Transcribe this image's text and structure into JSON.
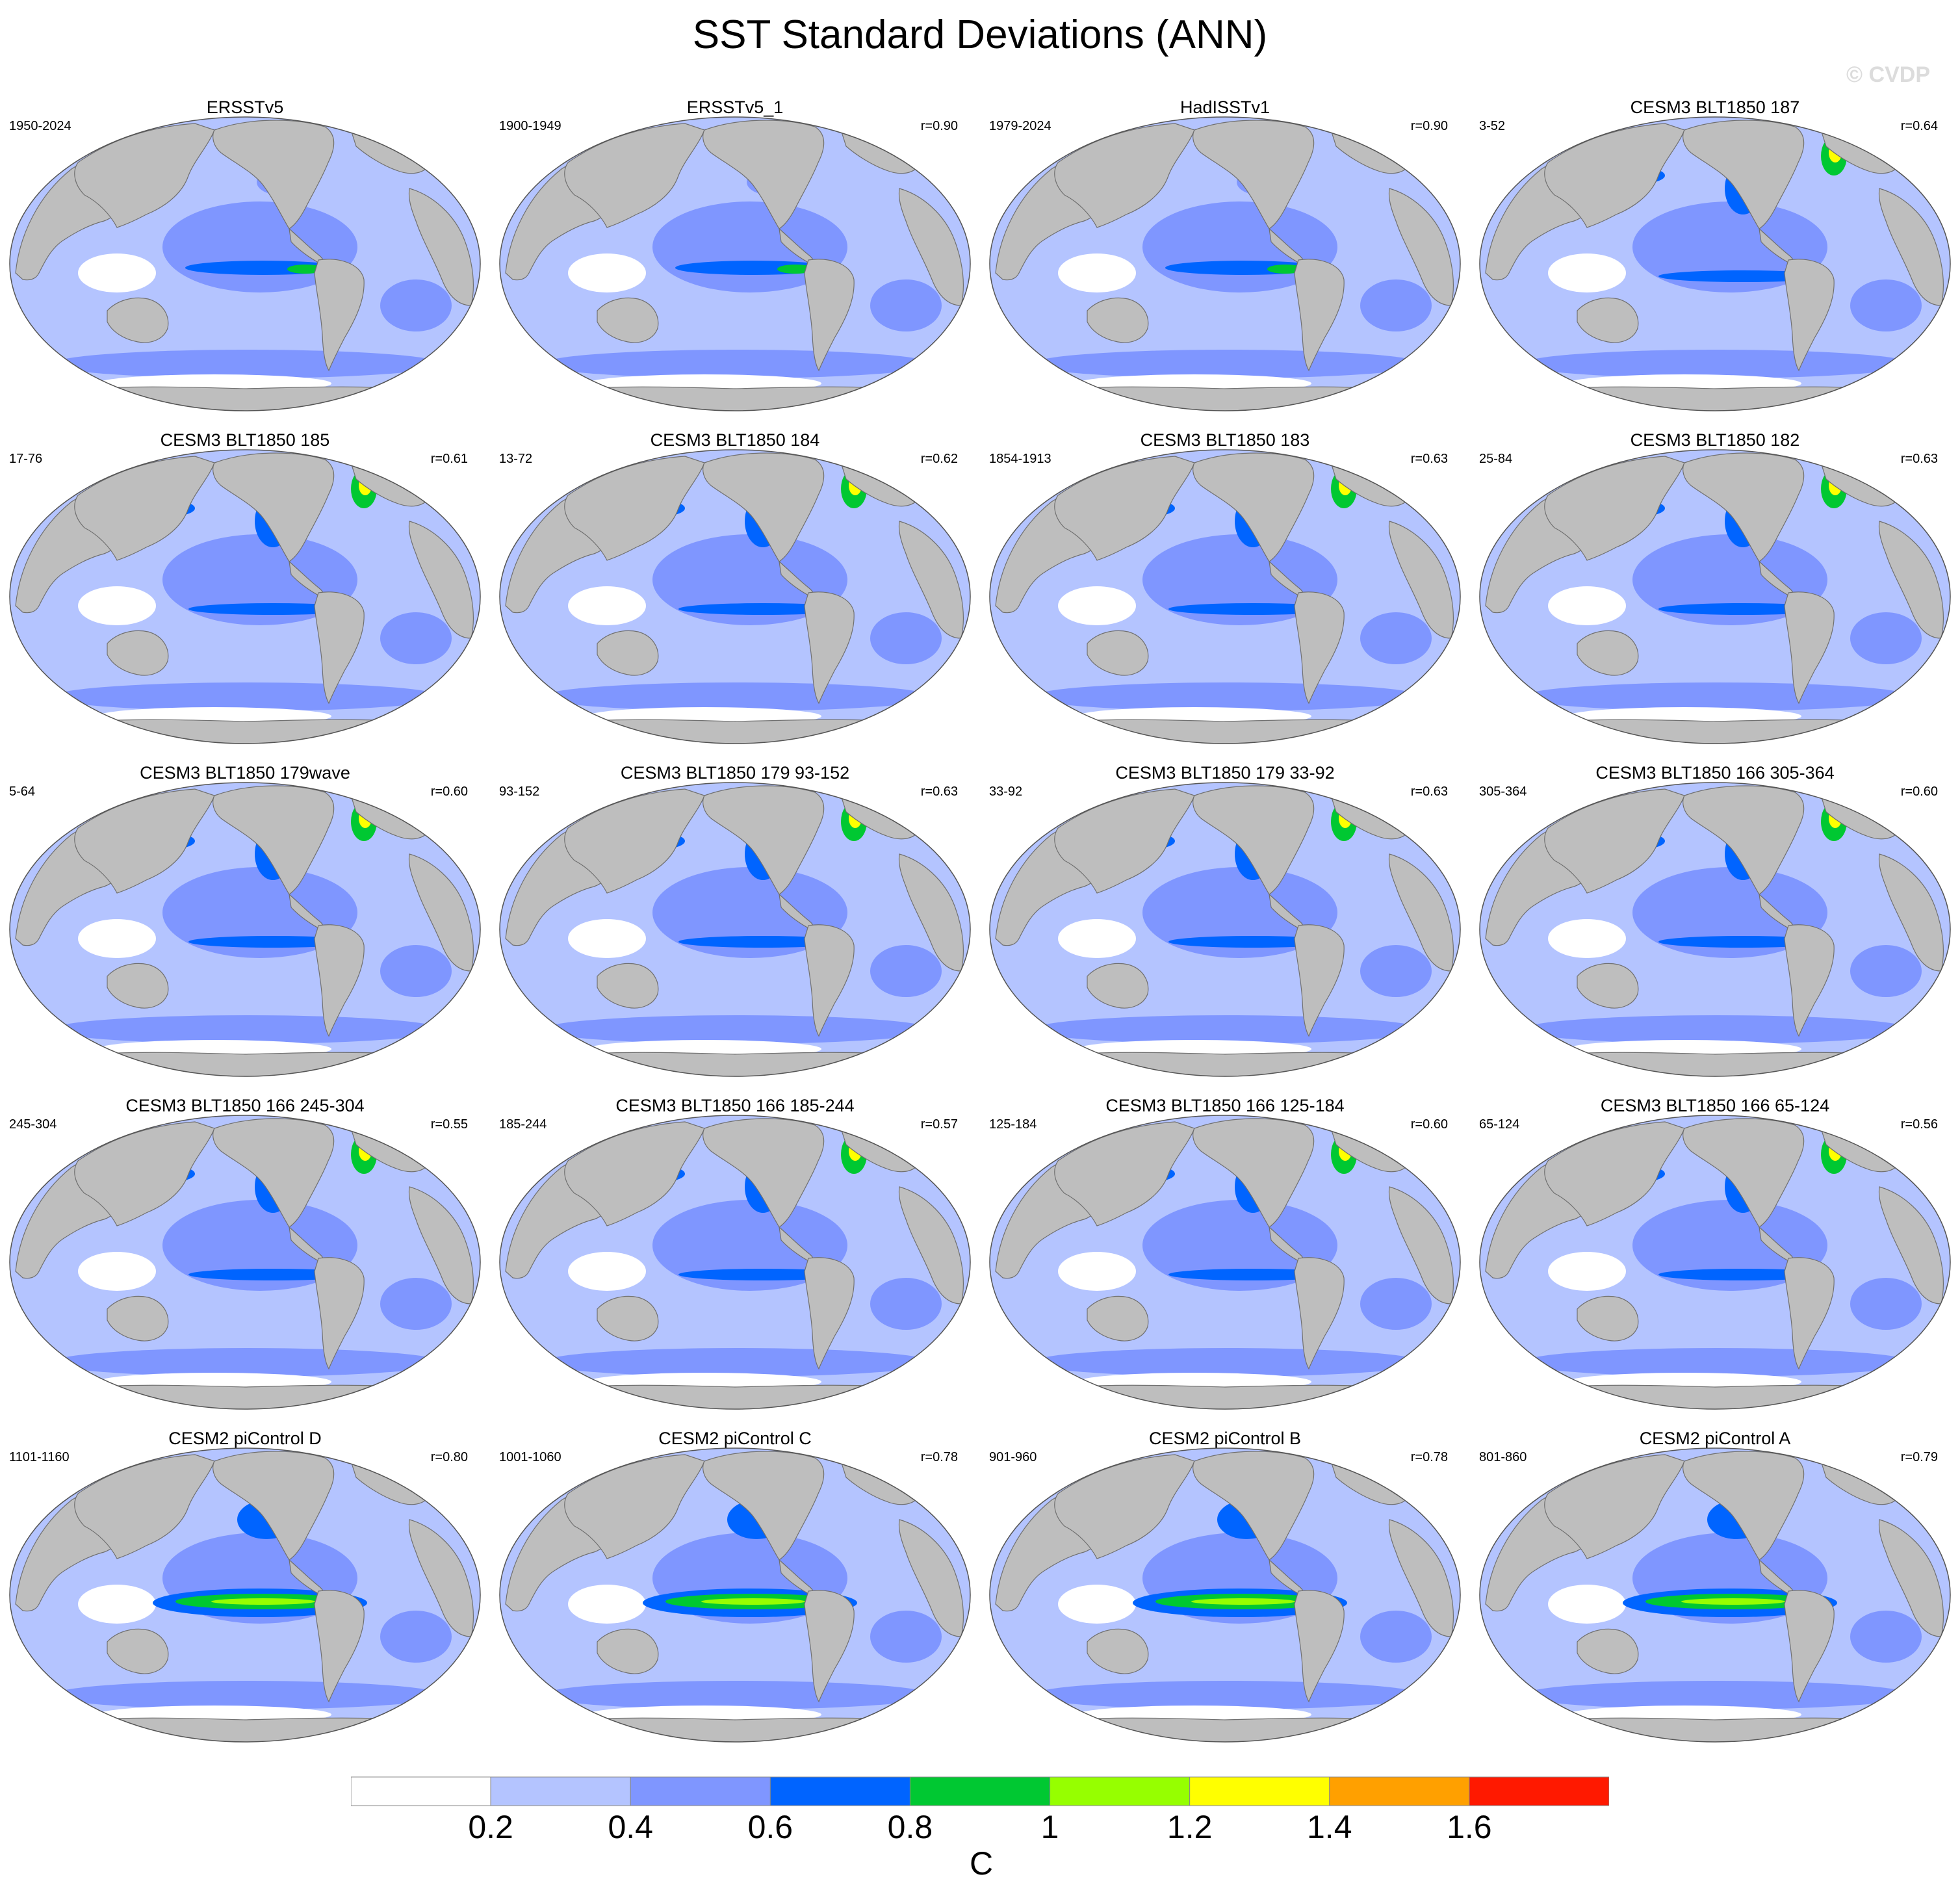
{
  "title": "SST Standard Deviations (ANN)",
  "copyright": "© CVDP",
  "colorbar": {
    "unit": "C",
    "levels": [
      "0.2",
      "0.4",
      "0.6",
      "0.8",
      "1",
      "1.2",
      "1.4",
      "1.6"
    ],
    "colors": [
      "#ffffff",
      "#b4c4ff",
      "#7f96ff",
      "#0064ff",
      "#00c832",
      "#96ff00",
      "#ffff00",
      "#ffa000",
      "#ff1900"
    ]
  },
  "panels": [
    {
      "name": "ERSSTv5",
      "years": "1950-2024",
      "corr": "",
      "style": "obs"
    },
    {
      "name": "ERSSTv5_1",
      "years": "1900-1949",
      "corr": "r=0.90",
      "style": "obs"
    },
    {
      "name": "HadISSTv1",
      "years": "1979-2024",
      "corr": "r=0.90",
      "style": "obs"
    },
    {
      "name": "CESM3 BLT1850 187",
      "years": "3-52",
      "corr": "r=0.64",
      "style": "cesm3"
    },
    {
      "name": "CESM3 BLT1850 185",
      "years": "17-76",
      "corr": "r=0.61",
      "style": "cesm3"
    },
    {
      "name": "CESM3 BLT1850 184",
      "years": "13-72",
      "corr": "r=0.62",
      "style": "cesm3"
    },
    {
      "name": "CESM3 BLT1850 183",
      "years": "1854-1913",
      "corr": "r=0.63",
      "style": "cesm3"
    },
    {
      "name": "CESM3 BLT1850 182",
      "years": "25-84",
      "corr": "r=0.63",
      "style": "cesm3"
    },
    {
      "name": "CESM3 BLT1850 179wave",
      "years": "5-64",
      "corr": "r=0.60",
      "style": "cesm3"
    },
    {
      "name": "CESM3 BLT1850 179 93-152",
      "years": "93-152",
      "corr": "r=0.63",
      "style": "cesm3"
    },
    {
      "name": "CESM3 BLT1850 179 33-92",
      "years": "33-92",
      "corr": "r=0.63",
      "style": "cesm3"
    },
    {
      "name": "CESM3 BLT1850 166 305-364",
      "years": "305-364",
      "corr": "r=0.60",
      "style": "cesm3"
    },
    {
      "name": "CESM3 BLT1850 166 245-304",
      "years": "245-304",
      "corr": "r=0.55",
      "style": "cesm3"
    },
    {
      "name": "CESM3 BLT1850 166 185-244",
      "years": "185-244",
      "corr": "r=0.57",
      "style": "cesm3"
    },
    {
      "name": "CESM3 BLT1850 166 125-184",
      "years": "125-184",
      "corr": "r=0.60",
      "style": "cesm3"
    },
    {
      "name": "CESM3 BLT1850 166 65-124",
      "years": "65-124",
      "corr": "r=0.56",
      "style": "cesm3"
    },
    {
      "name": "CESM2 piControl D",
      "years": "1101-1160",
      "corr": "r=0.80",
      "style": "cesm2"
    },
    {
      "name": "CESM2 piControl C",
      "years": "1001-1060",
      "corr": "r=0.78",
      "style": "cesm2"
    },
    {
      "name": "CESM2 piControl B",
      "years": "901-960",
      "corr": "r=0.78",
      "style": "cesm2"
    },
    {
      "name": "CESM2 piControl A",
      "years": "801-860",
      "corr": "r=0.79",
      "style": "cesm2"
    }
  ]
}
